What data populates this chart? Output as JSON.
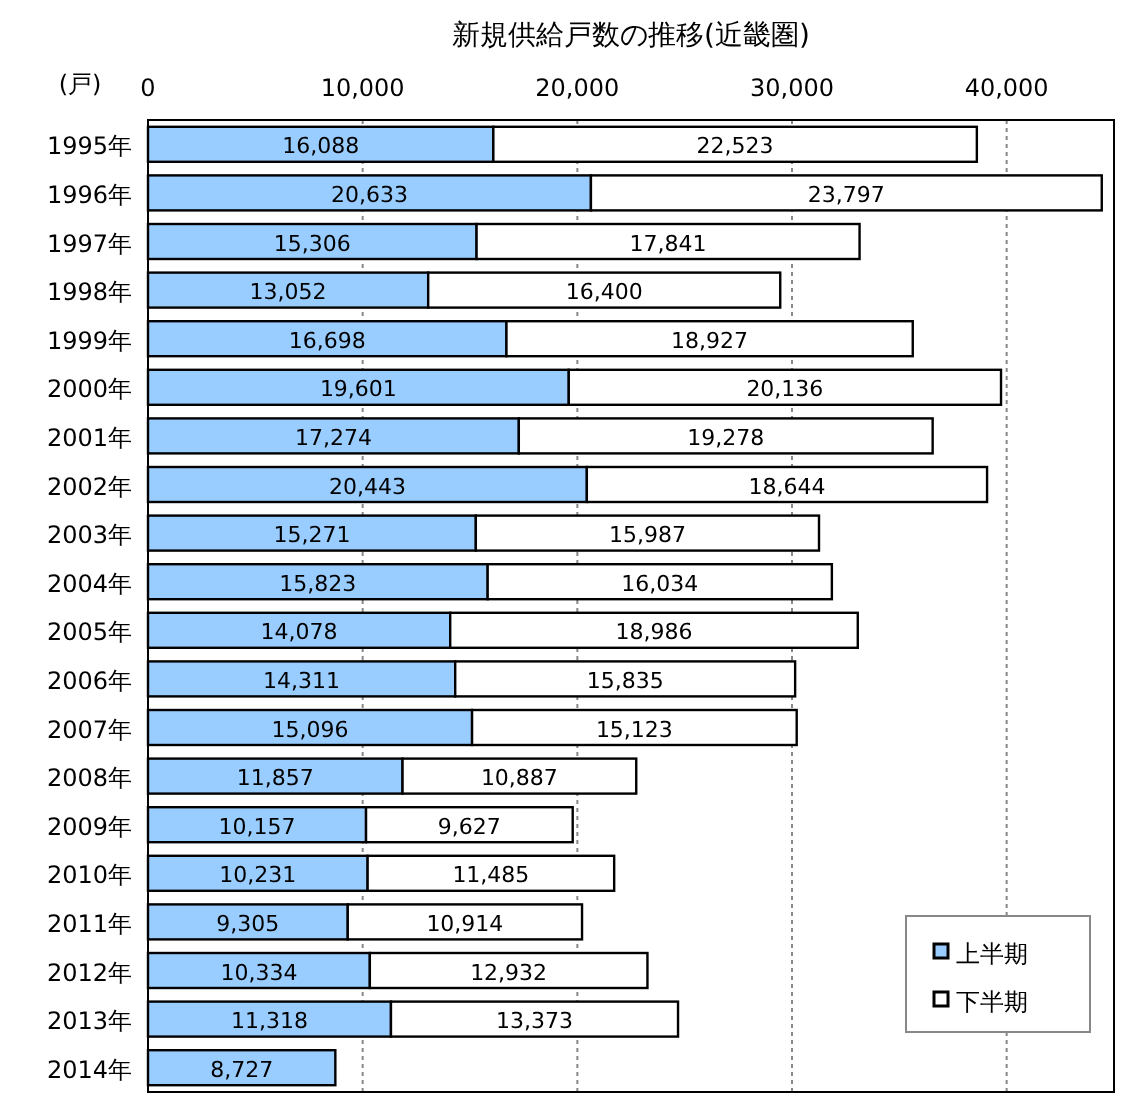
{
  "chart_data": {
    "type": "bar",
    "orientation": "horizontal",
    "stacked": true,
    "title": "新規供給戸数の推移(近畿圏)",
    "xlabel": "(戸)",
    "categories": [
      "1995年",
      "1996年",
      "1997年",
      "1998年",
      "1999年",
      "2000年",
      "2001年",
      "2002年",
      "2003年",
      "2004年",
      "2005年",
      "2006年",
      "2007年",
      "2008年",
      "2009年",
      "2010年",
      "2011年",
      "2012年",
      "2013年",
      "2014年"
    ],
    "series": [
      {
        "name": "上半期",
        "color": "#99ccff",
        "values": [
          16088,
          20633,
          15306,
          13052,
          16698,
          19601,
          17274,
          20443,
          15271,
          15823,
          14078,
          14311,
          15096,
          11857,
          10157,
          10231,
          9305,
          10334,
          11318,
          8727
        ],
        "value_labels": [
          "16,088",
          "20,633",
          "15,306",
          "13,052",
          "16,698",
          "19,601",
          "17,274",
          "20,443",
          "15,271",
          "15,823",
          "14,078",
          "14,311",
          "15,096",
          "11,857",
          "10,157",
          "10,231",
          "9,305",
          "10,334",
          "11,318",
          "8,727"
        ]
      },
      {
        "name": "下半期",
        "color": "#ffffff",
        "values": [
          22523,
          23797,
          17841,
          16400,
          18927,
          20136,
          19278,
          18644,
          15987,
          16034,
          18986,
          15835,
          15123,
          10887,
          9627,
          11485,
          10914,
          12932,
          13373,
          null
        ],
        "value_labels": [
          "22,523",
          "23,797",
          "17,841",
          "16,400",
          "18,927",
          "20,136",
          "19,278",
          "18,644",
          "15,987",
          "16,034",
          "18,986",
          "15,835",
          "15,123",
          "10,887",
          "9,627",
          "11,485",
          "10,914",
          "12,932",
          "13,373",
          null
        ]
      }
    ],
    "xlim": [
      0,
      45000
    ],
    "xticks": [
      0,
      {
        "value": 10000,
        "label": "10,000"
      },
      {
        "value": 20000,
        "label": "20,000"
      },
      {
        "value": 30000,
        "label": "30,000"
      },
      {
        "value": 40000,
        "label": "40,000"
      }
    ],
    "grid": "x",
    "legend": "bottom right"
  }
}
